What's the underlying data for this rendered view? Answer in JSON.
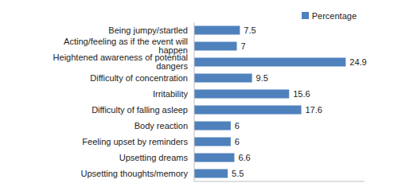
{
  "chart_data": {
    "type": "bar",
    "orientation": "horizontal",
    "categories": [
      "Being jumpy/startled",
      "Acting/feeling as if the event will happen",
      "Heightened awareness of potential dangers",
      "Difficulty of concentration",
      "Irritability",
      "Difficulty of falling asleep",
      "Body reaction",
      "Feeling upset by reminders",
      "Upsetting dreams",
      "Upsetting thoughts/memory"
    ],
    "series": [
      {
        "name": "Percentage",
        "color": "#4f81bd",
        "values": [
          7.5,
          7,
          24.9,
          9.5,
          15.6,
          17.6,
          6,
          6,
          6.6,
          5.5
        ]
      }
    ],
    "xlim": [
      0,
      28
    ],
    "data_labels": true,
    "legend": "top-right",
    "tick_labels": "y",
    "grid": false
  }
}
